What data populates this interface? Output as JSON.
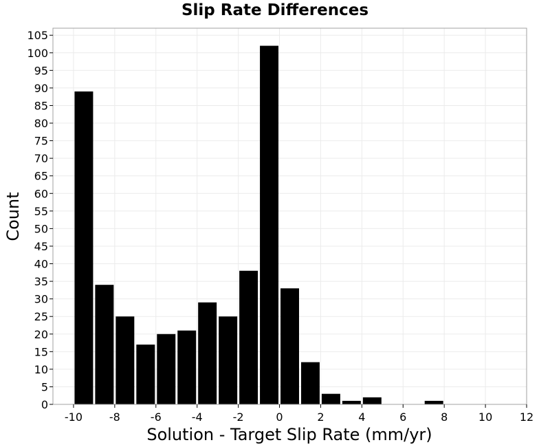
{
  "chart_data": {
    "type": "bar",
    "title": "Slip Rate Differences",
    "xlabel": "Solution - Target Slip Rate (mm/yr)",
    "ylabel": "Count",
    "xlim": [
      -11,
      12
    ],
    "ylim": [
      0,
      107
    ],
    "xticks": [
      -10,
      -8,
      -6,
      -4,
      -2,
      0,
      2,
      4,
      6,
      8,
      10,
      12
    ],
    "yticks": [
      0,
      5,
      10,
      15,
      20,
      25,
      30,
      35,
      40,
      45,
      50,
      55,
      60,
      65,
      70,
      75,
      80,
      85,
      90,
      95,
      100,
      105
    ],
    "bin_width": 1,
    "x": [
      -9.5,
      -8.5,
      -7.5,
      -6.5,
      -5.5,
      -4.5,
      -3.5,
      -2.5,
      -1.5,
      -0.5,
      0.5,
      1.5,
      2.5,
      3.5,
      4.5,
      7.5
    ],
    "values": [
      89,
      34,
      25,
      17,
      20,
      21,
      29,
      25,
      38,
      102,
      33,
      12,
      3,
      1,
      2,
      1
    ],
    "bar_color": "#000000",
    "grid": true,
    "grid_color": "#ebebeb",
    "legend": "none"
  }
}
